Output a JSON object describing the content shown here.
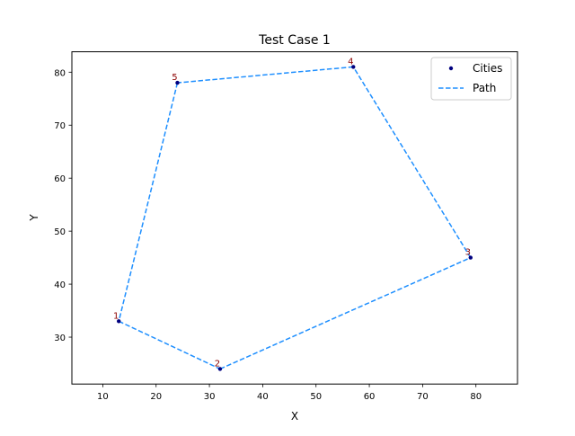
{
  "chart_data": {
    "type": "scatter",
    "title": "Test Case 1",
    "xlabel": "X",
    "ylabel": "Y",
    "xlim": [
      4.2,
      87.8
    ],
    "ylim": [
      21.15,
      83.85
    ],
    "xticks": [
      10,
      20,
      30,
      40,
      50,
      60,
      70,
      80
    ],
    "yticks": [
      30,
      40,
      50,
      60,
      70,
      80
    ],
    "grid": false,
    "legend_position": "top-right",
    "cities": [
      {
        "label": "1",
        "x": 13,
        "y": 33
      },
      {
        "label": "2",
        "x": 32,
        "y": 24
      },
      {
        "label": "3",
        "x": 79,
        "y": 45
      },
      {
        "label": "4",
        "x": 57,
        "y": 81
      },
      {
        "label": "5",
        "x": 24,
        "y": 78
      }
    ],
    "path_order": [
      1,
      2,
      3,
      4,
      5,
      1
    ],
    "series": [
      {
        "name": "Cities",
        "style": "marker",
        "color": "#00007f"
      },
      {
        "name": "Path",
        "style": "dashed-line",
        "color": "#1e8fff"
      }
    ],
    "label_color": "#8b0000"
  }
}
